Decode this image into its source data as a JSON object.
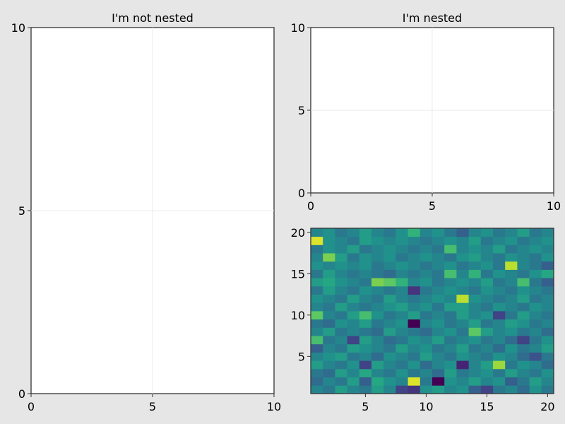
{
  "chart_data": [
    {
      "type": "scatter",
      "title": "I'm not nested",
      "xlim": [
        0,
        10
      ],
      "ylim": [
        0,
        10
      ],
      "xticks": [
        "0",
        "5",
        "10"
      ],
      "yticks": [
        "0",
        "5",
        "10"
      ],
      "grid": true,
      "series": []
    },
    {
      "type": "scatter",
      "title": "I'm nested",
      "xlim": [
        0,
        10
      ],
      "ylim": [
        0,
        10
      ],
      "xticks": [
        "0",
        "5",
        "10"
      ],
      "yticks": [
        "0",
        "5",
        "10"
      ],
      "grid": true,
      "series": []
    },
    {
      "type": "heatmap",
      "title": "",
      "colormap": "viridis",
      "xlim": [
        0.5,
        20.5
      ],
      "ylim": [
        0.5,
        20.5
      ],
      "xticks": [
        "5",
        "10",
        "15",
        "20"
      ],
      "yticks": [
        "5",
        "10",
        "15",
        "20"
      ],
      "value_range": [
        0,
        1
      ],
      "values": [
        [
          0.45,
          0.4,
          0.55,
          0.45,
          0.4,
          0.55,
          0.45,
          0.2,
          0.15,
          0.5,
          0.55,
          0.45,
          0.5,
          0.3,
          0.2,
          0.4,
          0.45,
          0.35,
          0.5,
          0.4
        ],
        [
          0.35,
          0.45,
          0.4,
          0.55,
          0.3,
          0.6,
          0.5,
          0.45,
          0.95,
          0.4,
          0.0,
          0.5,
          0.45,
          0.55,
          0.45,
          0.5,
          0.3,
          0.4,
          0.55,
          0.45
        ],
        [
          0.4,
          0.35,
          0.55,
          0.45,
          0.6,
          0.45,
          0.4,
          0.5,
          0.4,
          0.45,
          0.35,
          0.55,
          0.4,
          0.45,
          0.5,
          0.4,
          0.55,
          0.45,
          0.4,
          0.5
        ],
        [
          0.55,
          0.45,
          0.4,
          0.5,
          0.2,
          0.55,
          0.45,
          0.4,
          0.5,
          0.35,
          0.45,
          0.5,
          0.1,
          0.45,
          0.55,
          0.85,
          0.4,
          0.5,
          0.45,
          0.35
        ],
        [
          0.45,
          0.5,
          0.55,
          0.4,
          0.45,
          0.35,
          0.5,
          0.45,
          0.4,
          0.55,
          0.45,
          0.4,
          0.5,
          0.45,
          0.4,
          0.5,
          0.45,
          0.35,
          0.25,
          0.4
        ],
        [
          0.3,
          0.45,
          0.4,
          0.55,
          0.5,
          0.45,
          0.4,
          0.55,
          0.45,
          0.5,
          0.4,
          0.45,
          0.55,
          0.4,
          0.45,
          0.35,
          0.5,
          0.4,
          0.45,
          0.55
        ],
        [
          0.7,
          0.4,
          0.45,
          0.2,
          0.55,
          0.45,
          0.35,
          0.4,
          0.5,
          0.45,
          0.55,
          0.4,
          0.45,
          0.5,
          0.4,
          0.45,
          0.35,
          0.2,
          0.4,
          0.5
        ],
        [
          0.45,
          0.55,
          0.4,
          0.45,
          0.4,
          0.35,
          0.55,
          0.45,
          0.4,
          0.35,
          0.45,
          0.5,
          0.4,
          0.75,
          0.55,
          0.45,
          0.5,
          0.4,
          0.45,
          0.35
        ],
        [
          0.4,
          0.35,
          0.5,
          0.45,
          0.55,
          0.4,
          0.45,
          0.5,
          0.0,
          0.45,
          0.5,
          0.4,
          0.45,
          0.55,
          0.4,
          0.45,
          0.55,
          0.5,
          0.4,
          0.45
        ],
        [
          0.75,
          0.45,
          0.4,
          0.55,
          0.7,
          0.5,
          0.4,
          0.45,
          0.55,
          0.4,
          0.45,
          0.4,
          0.55,
          0.45,
          0.5,
          0.2,
          0.4,
          0.55,
          0.45,
          0.4
        ],
        [
          0.45,
          0.4,
          0.55,
          0.45,
          0.4,
          0.45,
          0.5,
          0.55,
          0.45,
          0.5,
          0.4,
          0.55,
          0.55,
          0.45,
          0.4,
          0.5,
          0.45,
          0.4,
          0.5,
          0.45
        ],
        [
          0.5,
          0.45,
          0.4,
          0.55,
          0.45,
          0.4,
          0.55,
          0.45,
          0.4,
          0.45,
          0.5,
          0.45,
          0.9,
          0.5,
          0.45,
          0.4,
          0.45,
          0.55,
          0.4,
          0.45
        ],
        [
          0.4,
          0.55,
          0.45,
          0.4,
          0.5,
          0.45,
          0.4,
          0.45,
          0.15,
          0.4,
          0.45,
          0.5,
          0.45,
          0.4,
          0.5,
          0.45,
          0.4,
          0.5,
          0.45,
          0.4
        ],
        [
          0.55,
          0.6,
          0.5,
          0.45,
          0.4,
          0.8,
          0.75,
          0.65,
          0.45,
          0.5,
          0.4,
          0.45,
          0.5,
          0.45,
          0.55,
          0.4,
          0.45,
          0.7,
          0.4,
          0.3
        ],
        [
          0.4,
          0.55,
          0.45,
          0.4,
          0.45,
          0.4,
          0.35,
          0.45,
          0.4,
          0.45,
          0.4,
          0.7,
          0.45,
          0.65,
          0.4,
          0.5,
          0.45,
          0.4,
          0.5,
          0.6
        ],
        [
          0.5,
          0.45,
          0.5,
          0.45,
          0.5,
          0.4,
          0.45,
          0.5,
          0.45,
          0.4,
          0.45,
          0.5,
          0.4,
          0.45,
          0.5,
          0.4,
          0.9,
          0.45,
          0.4,
          0.3
        ],
        [
          0.45,
          0.8,
          0.55,
          0.4,
          0.5,
          0.45,
          0.5,
          0.4,
          0.45,
          0.5,
          0.45,
          0.4,
          0.5,
          0.55,
          0.45,
          0.4,
          0.5,
          0.45,
          0.4,
          0.5
        ],
        [
          0.4,
          0.5,
          0.45,
          0.55,
          0.4,
          0.45,
          0.5,
          0.45,
          0.4,
          0.45,
          0.4,
          0.7,
          0.45,
          0.5,
          0.45,
          0.55,
          0.4,
          0.45,
          0.5,
          0.45
        ],
        [
          0.95,
          0.5,
          0.45,
          0.4,
          0.55,
          0.5,
          0.45,
          0.5,
          0.45,
          0.4,
          0.45,
          0.5,
          0.45,
          0.55,
          0.4,
          0.45,
          0.5,
          0.4,
          0.45,
          0.5
        ],
        [
          0.45,
          0.5,
          0.4,
          0.45,
          0.55,
          0.45,
          0.4,
          0.5,
          0.65,
          0.45,
          0.5,
          0.4,
          0.3,
          0.45,
          0.5,
          0.4,
          0.45,
          0.55,
          0.4,
          0.45
        ]
      ]
    }
  ]
}
